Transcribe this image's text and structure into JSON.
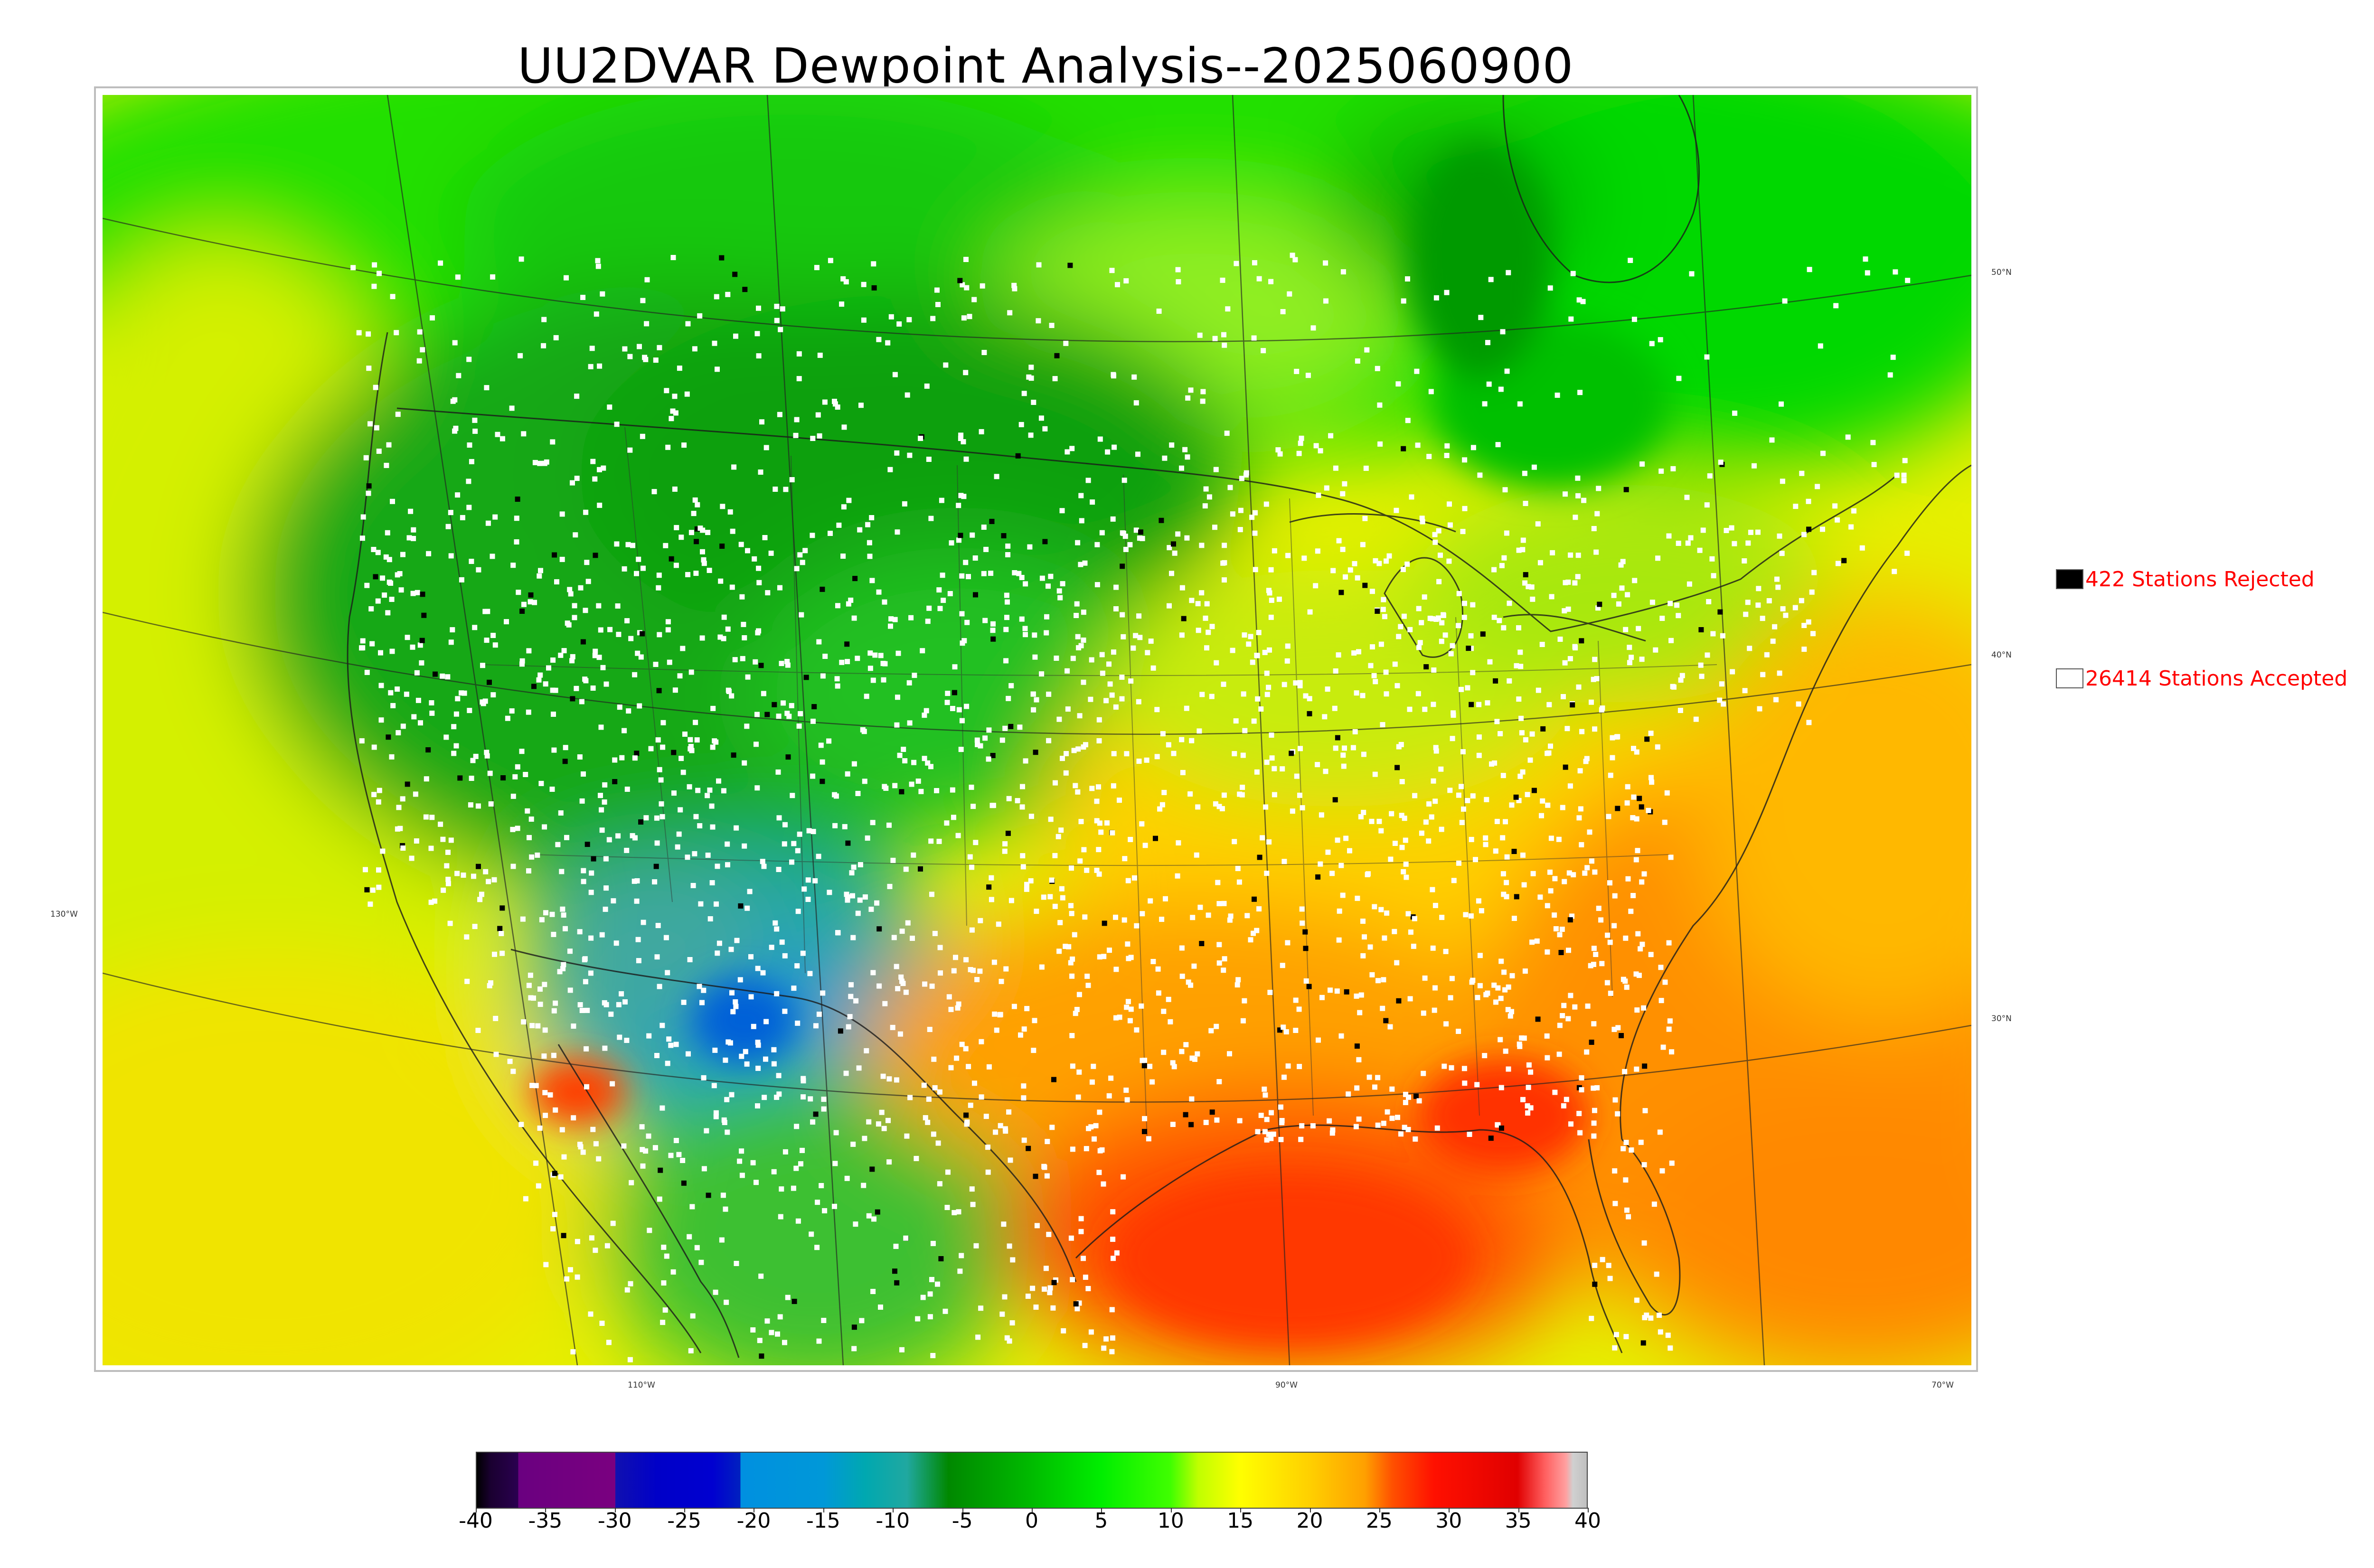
{
  "title": "UU2DVAR Dewpoint Analysis--2025060900",
  "map": {
    "lat_labels": [
      {
        "text": "50°N",
        "lat": 50
      },
      {
        "text": "40°N",
        "lat": 40
      },
      {
        "text": "30°N",
        "lat": 30
      }
    ],
    "lon_labels": [
      {
        "text": "130°W",
        "lon": -130
      },
      {
        "text": "110°W",
        "lon": -110
      },
      {
        "text": "90°W",
        "lon": -90
      },
      {
        "text": "70°W",
        "lon": -70
      }
    ]
  },
  "legend": {
    "rejected": {
      "count": 422,
      "label": "422 Stations Rejected",
      "color": "#000000"
    },
    "accepted": {
      "count": 26414,
      "label": "26414 Stations Accepted",
      "color": "#ffffff"
    }
  },
  "colorbar": {
    "min": -40,
    "max": 40,
    "ticks": [
      "-40",
      "-35",
      "-30",
      "-25",
      "-20",
      "-15",
      "-10",
      "-5",
      "0",
      "5",
      "10",
      "15",
      "20",
      "25",
      "30",
      "35",
      "40"
    ],
    "stops": [
      {
        "value": -40,
        "color": "#000000"
      },
      {
        "value": -39,
        "color": "#1a0030"
      },
      {
        "value": -37,
        "color": "#2a0050"
      },
      {
        "value": -37,
        "color": "#6a0080"
      },
      {
        "value": -30,
        "color": "#7a0080"
      },
      {
        "value": -30,
        "color": "#1010b0"
      },
      {
        "value": -27,
        "color": "#0000c8"
      },
      {
        "value": -23,
        "color": "#0000d0"
      },
      {
        "value": -21,
        "color": "#0020c0"
      },
      {
        "value": -21,
        "color": "#0090e0"
      },
      {
        "value": -15,
        "color": "#0098d8"
      },
      {
        "value": -12,
        "color": "#00a8b0"
      },
      {
        "value": -9,
        "color": "#20a8a0"
      },
      {
        "value": -6,
        "color": "#008800"
      },
      {
        "value": 0,
        "color": "#00bb00"
      },
      {
        "value": 5,
        "color": "#00ee00"
      },
      {
        "value": 10,
        "color": "#40ff00"
      },
      {
        "value": 12,
        "color": "#c0ff00"
      },
      {
        "value": 15,
        "color": "#ffff00"
      },
      {
        "value": 20,
        "color": "#ffd000"
      },
      {
        "value": 24,
        "color": "#ffa000"
      },
      {
        "value": 26,
        "color": "#ff5000"
      },
      {
        "value": 29,
        "color": "#ff1000"
      },
      {
        "value": 35,
        "color": "#e00000"
      },
      {
        "value": 37,
        "color": "#ff6060"
      },
      {
        "value": 38.5,
        "color": "#ffa0a0"
      },
      {
        "value": 39,
        "color": "#d0d0d0"
      },
      {
        "value": 40,
        "color": "#c0c0c0"
      }
    ]
  }
}
